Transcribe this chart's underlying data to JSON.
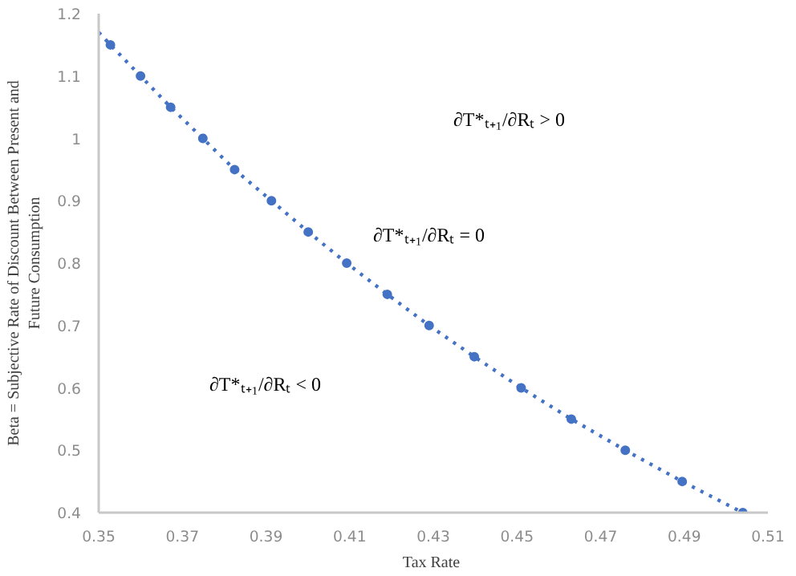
{
  "chart_data": {
    "type": "scatter",
    "xlabel": "Tax  Rate",
    "ylabel": "Beta = Subjective Rate of Discount Between Present and\nFuture Consumption",
    "xlim": [
      0.35,
      0.51
    ],
    "xticks": [
      0.35,
      0.37,
      0.39,
      0.41,
      0.43,
      0.45,
      0.47,
      0.49,
      0.51
    ],
    "ylim": [
      0.4,
      1.2
    ],
    "yticks": [
      0.4,
      0.5,
      0.6,
      0.7,
      0.8,
      0.9,
      1,
      1.1,
      1.2
    ],
    "grid": false,
    "marker": "circle",
    "series": [
      {
        "color": "#4472c4",
        "x": [
          0.3528,
          0.36,
          0.3672,
          0.3749,
          0.3825,
          0.3913,
          0.4001,
          0.4093,
          0.419,
          0.429,
          0.4398,
          0.451,
          0.463,
          0.4759,
          0.4895,
          0.504
        ],
        "values": [
          1.15,
          1.1,
          1.05,
          1.0,
          0.95,
          0.9,
          0.85,
          0.8,
          0.75,
          0.7,
          0.65,
          0.6,
          0.55,
          0.5,
          0.45,
          0.4
        ]
      },
      {
        "color": "#4472c4",
        "type": "line",
        "line_style": "dotted",
        "marker": "none",
        "x": [
          0.35,
          0.3528,
          0.36,
          0.3672,
          0.3749,
          0.3825,
          0.3913,
          0.4001,
          0.4093,
          0.419,
          0.429,
          0.4398,
          0.451,
          0.463,
          0.4759,
          0.4895,
          0.504
        ],
        "values": [
          1.17,
          1.15,
          1.1,
          1.05,
          1.0,
          0.95,
          0.9,
          0.85,
          0.8,
          0.75,
          0.7,
          0.65,
          0.6,
          0.55,
          0.5,
          0.45,
          0.4
        ]
      }
    ],
    "annotations": [
      "∂T*ₜ₊₁/∂Rₜ > 0",
      "∂T*ₜ₊₁/∂Rₜ = 0",
      "∂T*ₜ₊₁/∂Rₜ < 0"
    ]
  }
}
